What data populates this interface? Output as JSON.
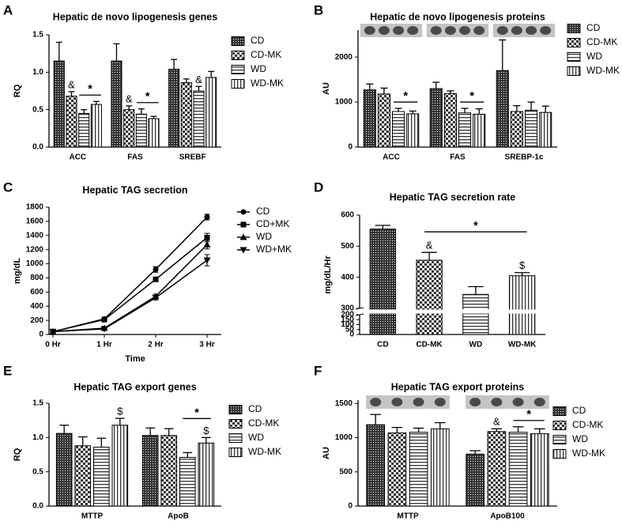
{
  "chart_data": [
    {
      "type": "bar",
      "panel": "A",
      "title": "Hepatic de novo lipogenesis genes",
      "ylabel": "RQ",
      "categories": [
        "ACC",
        "FAS",
        "SREBF"
      ],
      "series": [
        {
          "name": "CD",
          "color": "#333333",
          "pattern": "crosshatch",
          "values": [
            1.15,
            1.15,
            1.04
          ],
          "errors": [
            0.25,
            0.23,
            0.13
          ]
        },
        {
          "name": "CD-MK",
          "color": "#333333",
          "pattern": "checker",
          "values": [
            0.68,
            0.5,
            0.86
          ],
          "errors": [
            0.06,
            0.05,
            0.05
          ]
        },
        {
          "name": "WD",
          "color": "#333333",
          "pattern": "hlines",
          "values": [
            0.45,
            0.44,
            0.75
          ],
          "errors": [
            0.05,
            0.07,
            0.06
          ]
        },
        {
          "name": "WD-MK",
          "color": "#333333",
          "pattern": "vlines",
          "values": [
            0.57,
            0.38,
            0.93
          ],
          "errors": [
            0.04,
            0.03,
            0.08
          ]
        }
      ],
      "ylim": [
        0,
        1.5
      ],
      "yticks": [
        {
          "value": 0,
          "label": "0.0"
        },
        {
          "value": 0.5,
          "label": "0.5"
        },
        {
          "value": 1,
          "label": "1.0"
        },
        {
          "value": 1.5,
          "label": "1.5"
        }
      ],
      "annotations": [
        "&",
        "*",
        "&",
        "*",
        "&"
      ]
    },
    {
      "type": "bar",
      "panel": "B",
      "title": "Hepatic de novo lipogenesis proteins",
      "ylabel": "AU",
      "categories": [
        "ACC",
        "FAS",
        "SREBP-1c"
      ],
      "series": [
        {
          "name": "CD",
          "color": "#333333",
          "pattern": "crosshatch",
          "values": [
            1270,
            1300,
            1700
          ],
          "errors": [
            130,
            140,
            680
          ]
        },
        {
          "name": "CD-MK",
          "color": "#333333",
          "pattern": "checker",
          "values": [
            1180,
            1190,
            790
          ],
          "errors": [
            130,
            60,
            130
          ]
        },
        {
          "name": "WD",
          "color": "#333333",
          "pattern": "hlines",
          "values": [
            790,
            760,
            820
          ],
          "errors": [
            70,
            100,
            180
          ]
        },
        {
          "name": "WD-MK",
          "color": "#333333",
          "pattern": "vlines",
          "values": [
            740,
            730,
            770
          ],
          "errors": [
            60,
            120,
            140
          ]
        }
      ],
      "ylim": [
        0,
        2600
      ],
      "yticks": [
        0,
        1000,
        2000
      ],
      "annotations": [
        "*",
        "*"
      ]
    },
    {
      "type": "line",
      "panel": "C",
      "title": "Hepatic TAG secretion",
      "ylabel": "mg/dL",
      "xlabel": "Time",
      "categories": [
        "0 Hr",
        "1 Hr",
        "2 Hr",
        "3 Hr"
      ],
      "series": [
        {
          "name": "CD",
          "color": "#000000",
          "marker": "circle",
          "values": [
            40,
            220,
            920,
            1660
          ],
          "errors": [
            10,
            20,
            40,
            40
          ]
        },
        {
          "name": "CD+MK",
          "color": "#000000",
          "marker": "square",
          "values": [
            40,
            210,
            780,
            1370
          ],
          "errors": [
            10,
            15,
            30,
            60
          ]
        },
        {
          "name": "WD",
          "color": "#000000",
          "marker": "triangle-up",
          "values": [
            40,
            90,
            540,
            1270
          ],
          "errors": [
            5,
            10,
            30,
            60
          ]
        },
        {
          "name": "WD+MK",
          "color": "#000000",
          "marker": "triangle-down",
          "values": [
            40,
            80,
            520,
            1050
          ],
          "errors": [
            5,
            10,
            30,
            80
          ]
        }
      ],
      "ylim": [
        0,
        1800
      ],
      "yticks": [
        0,
        200,
        400,
        600,
        800,
        1000,
        1200,
        1400,
        1600,
        1800
      ]
    },
    {
      "type": "bar",
      "panel": "D",
      "title": "Hepatic TAG secretion  rate",
      "ylabel": "mg/dL/Hr",
      "categories": [
        "CD",
        "CD-MK",
        "WD",
        "WD-MK"
      ],
      "values": [
        555,
        455,
        345,
        405
      ],
      "errors": [
        12,
        25,
        25,
        10
      ],
      "patterns": [
        "crosshatch",
        "checker",
        "hlines",
        "vlines"
      ],
      "color": "#333333",
      "ylim": [
        0,
        600
      ],
      "axis_break": [
        200,
        300
      ],
      "yticks": [
        0,
        50,
        100,
        150,
        200,
        300,
        400,
        500,
        600
      ],
      "annotations": [
        "&",
        "*",
        "$"
      ]
    },
    {
      "type": "bar",
      "panel": "E",
      "title": "Hepatic TAG export genes",
      "ylabel": "RQ",
      "categories": [
        "MTTP",
        "ApoB"
      ],
      "series": [
        {
          "name": "CD",
          "color": "#333333",
          "pattern": "crosshatch",
          "values": [
            1.06,
            1.03
          ],
          "errors": [
            0.12,
            0.11
          ]
        },
        {
          "name": "CD-MK",
          "color": "#333333",
          "pattern": "checker",
          "values": [
            0.88,
            1.03
          ],
          "errors": [
            0.13,
            0.1
          ]
        },
        {
          "name": "WD",
          "color": "#333333",
          "pattern": "hlines",
          "values": [
            0.86,
            0.71
          ],
          "errors": [
            0.13,
            0.07
          ]
        },
        {
          "name": "WD-MK",
          "color": "#333333",
          "pattern": "vlines",
          "values": [
            1.18,
            0.92
          ],
          "errors": [
            0.1,
            0.08
          ]
        }
      ],
      "ylim": [
        0,
        1.5
      ],
      "yticks": [
        {
          "value": 0,
          "label": "0.0"
        },
        {
          "value": 0.5,
          "label": "0.5"
        },
        {
          "value": 1,
          "label": "1.0"
        },
        {
          "value": 1.5,
          "label": "1.5"
        }
      ],
      "annotations": [
        "$",
        "*",
        "$"
      ]
    },
    {
      "type": "bar",
      "panel": "F",
      "title": "Hepatic TAG export proteins",
      "ylabel": "AU",
      "categories": [
        "MTTP",
        "ApoB100"
      ],
      "series": [
        {
          "name": "CD",
          "color": "#333333",
          "pattern": "crosshatch",
          "values": [
            1190,
            760
          ],
          "errors": [
            150,
            50
          ]
        },
        {
          "name": "CD-MK",
          "color": "#333333",
          "pattern": "checker",
          "values": [
            1070,
            1090
          ],
          "errors": [
            80,
            40
          ]
        },
        {
          "name": "WD",
          "color": "#333333",
          "pattern": "hlines",
          "values": [
            1080,
            1080
          ],
          "errors": [
            60,
            80
          ]
        },
        {
          "name": "WD-MK",
          "color": "#333333",
          "pattern": "vlines",
          "values": [
            1130,
            1060
          ],
          "errors": [
            90,
            70
          ]
        }
      ],
      "ylim": [
        0,
        1550
      ],
      "yticks": [
        0,
        500,
        1000,
        1500
      ],
      "annotations": [
        "&",
        "*"
      ]
    }
  ]
}
